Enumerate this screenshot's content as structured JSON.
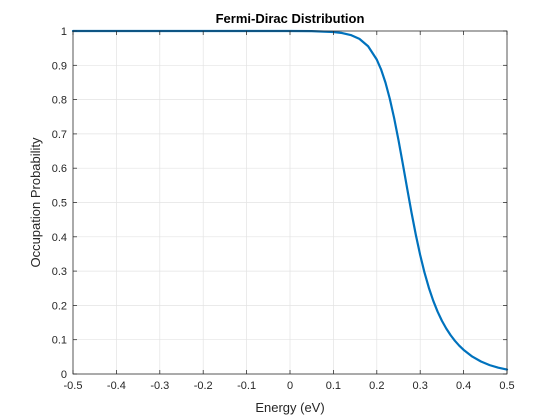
{
  "chart_data": {
    "type": "line",
    "title": "Fermi-Dirac Distribution",
    "xlabel": "Energy (eV)",
    "ylabel": "Occupation Probability",
    "xlim": [
      -0.5,
      0.5
    ],
    "ylim": [
      0,
      1
    ],
    "xticks": [
      -0.5,
      -0.4,
      -0.3,
      -0.2,
      -0.1,
      0,
      0.1,
      0.2,
      0.3,
      0.4,
      0.5
    ],
    "xtick_labels": [
      "-0.5",
      "-0.4",
      "-0.3",
      "-0.2",
      "-0.1",
      "0",
      "0.1",
      "0.2",
      "0.3",
      "0.4",
      "0.5"
    ],
    "yticks": [
      0,
      0.1,
      0.2,
      0.3,
      0.4,
      0.5,
      0.6,
      0.7,
      0.8,
      0.9,
      1
    ],
    "ytick_labels": [
      "0",
      "0.1",
      "0.2",
      "0.3",
      "0.4",
      "0.5",
      "0.6",
      "0.7",
      "0.8",
      "0.9",
      "1"
    ],
    "grid": true,
    "series": [
      {
        "color": "#0072BD",
        "x": [
          -0.5,
          -0.4,
          -0.3,
          -0.2,
          -0.1,
          0.0,
          0.05,
          0.1,
          0.12,
          0.14,
          0.16,
          0.18,
          0.2,
          0.21,
          0.22,
          0.23,
          0.24,
          0.25,
          0.26,
          0.27,
          0.28,
          0.29,
          0.3,
          0.31,
          0.32,
          0.33,
          0.34,
          0.35,
          0.36,
          0.37,
          0.38,
          0.39,
          0.4,
          0.42,
          0.44,
          0.46,
          0.48,
          0.5
        ],
        "y": [
          1.0,
          1.0,
          1.0,
          1.0,
          1.0,
          1.0,
          0.9996,
          0.997,
          0.9941,
          0.9883,
          0.977,
          0.9555,
          0.9165,
          0.8874,
          0.8495,
          0.8022,
          0.7458,
          0.6816,
          0.6121,
          0.5405,
          0.4705,
          0.4053,
          0.3466,
          0.2953,
          0.2512,
          0.2137,
          0.1821,
          0.1553,
          0.1326,
          0.1133,
          0.0968,
          0.0826,
          0.0704,
          0.0508,
          0.0364,
          0.0259,
          0.0184,
          0.013
        ]
      }
    ]
  }
}
